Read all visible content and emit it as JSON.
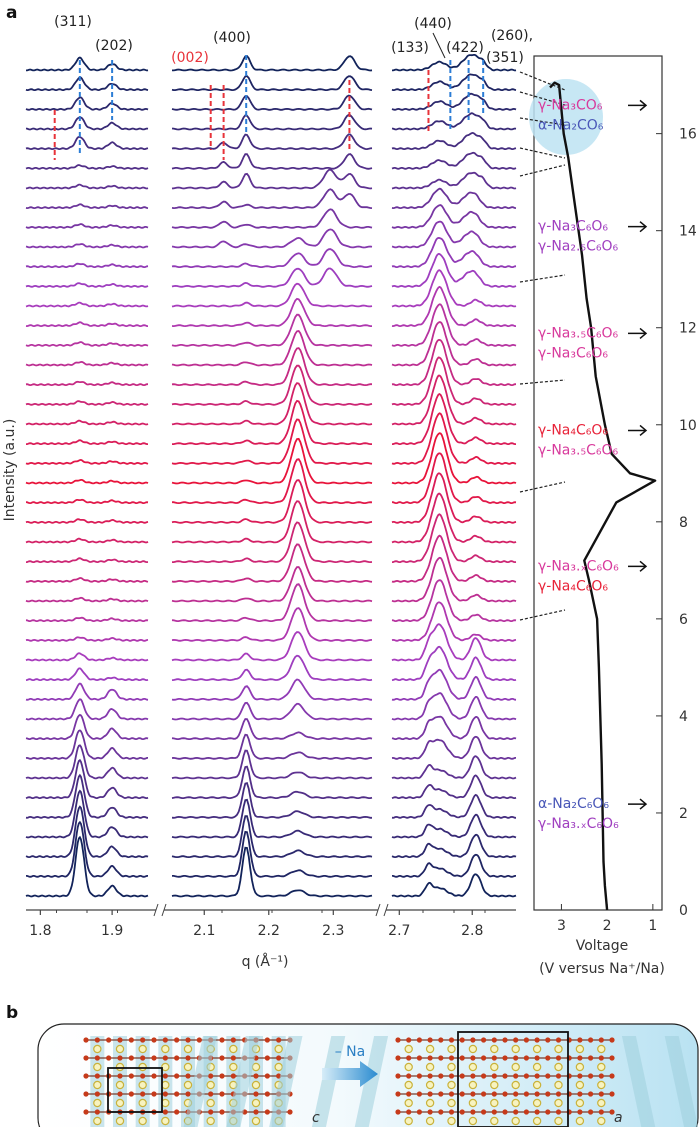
{
  "panel_a_label": "a",
  "panel_b_label": "b",
  "colors": {
    "start": "#12235a",
    "mid": "#a53fc4",
    "hot": "#e8133a",
    "phase_blue": "#4a58b8",
    "phase_purple": "#a040c0",
    "phase_pink": "#d83a9c",
    "phase_red": "#e8233a",
    "dash_blue": "#2c7dd6",
    "dash_red": "#e8333a",
    "ellipse": "#bde3f2"
  },
  "chart_data": [
    {
      "type": "line",
      "subtype": "stacked-offset-diffraction",
      "ylabel": "Intensity (a.u.)",
      "xlabel": "q (Å⁻¹)",
      "n_patterns": 43,
      "windows": [
        {
          "xlim": [
            1.78,
            1.95
          ],
          "ticks": [
            {
              "v": 1.8,
              "label": "1.8"
            },
            {
              "v": 1.9,
              "label": "1.9"
            }
          ],
          "peaks": [
            {
              "q": 1.855,
              "label": "(311)"
            },
            {
              "q": 1.9,
              "label": "(202)"
            },
            {
              "q": 1.82,
              "label": ""
            }
          ]
        },
        {
          "xlim": [
            2.05,
            2.36
          ],
          "ticks": [
            {
              "v": 2.1,
              "label": "2.1"
            },
            {
              "v": 2.2,
              "label": "2.2"
            },
            {
              "v": 2.3,
              "label": "2.3"
            }
          ],
          "peaks": [
            {
              "q": 2.165,
              "label": "(400)"
            },
            {
              "q": 2.245,
              "label": ""
            },
            {
              "q": 2.3,
              "label": ""
            },
            {
              "q": 2.13,
              "label": "(002)"
            },
            {
              "q": 2.325,
              "label": ""
            }
          ]
        },
        {
          "xlim": [
            2.69,
            2.86
          ],
          "ticks": [
            {
              "v": 2.7,
              "label": "2.7"
            },
            {
              "v": 2.8,
              "label": "2.8"
            }
          ],
          "peaks": [
            {
              "q": 2.74,
              "label": "(133)"
            },
            {
              "q": 2.77,
              "label": "(440)"
            },
            {
              "q": 2.795,
              "label": "(422)"
            },
            {
              "q": 2.815,
              "label": "(260),"
            },
            {
              "q": 2.815,
              "label": "(351)"
            }
          ]
        }
      ]
    },
    {
      "type": "line",
      "xlabel": "Voltage",
      "xlabel2": "(V versus Na⁺/Na)",
      "xlim": [
        3.6,
        0.8
      ],
      "ylim": [
        0,
        17.6
      ],
      "xticks": [
        {
          "v": 3,
          "label": "3"
        },
        {
          "v": 2,
          "label": "2"
        },
        {
          "v": 1,
          "label": "1"
        }
      ],
      "yticks": [
        {
          "v": 0,
          "label": "0"
        },
        {
          "v": 2,
          "label": "2"
        },
        {
          "v": 4,
          "label": "4"
        },
        {
          "v": 6,
          "label": "6"
        },
        {
          "v": 8,
          "label": "8"
        },
        {
          "v": 10,
          "label": "10"
        },
        {
          "v": 12,
          "label": "12"
        },
        {
          "v": 14,
          "label": "14"
        },
        {
          "v": 16,
          "label": "16"
        }
      ],
      "curve": [
        [
          2.0,
          0.0
        ],
        [
          2.05,
          0.5
        ],
        [
          2.08,
          1.0
        ],
        [
          2.1,
          2.0
        ],
        [
          2.12,
          3.0
        ],
        [
          2.15,
          4.0
        ],
        [
          2.18,
          5.0
        ],
        [
          2.22,
          6.0
        ],
        [
          2.4,
          6.8
        ],
        [
          2.5,
          7.2
        ],
        [
          1.8,
          8.4
        ],
        [
          0.95,
          8.85
        ],
        [
          1.5,
          9.0
        ],
        [
          1.9,
          9.4
        ],
        [
          2.05,
          10.0
        ],
        [
          2.25,
          11.0
        ],
        [
          2.35,
          12.0
        ],
        [
          2.45,
          12.6
        ],
        [
          2.55,
          13.5
        ],
        [
          2.7,
          14.5
        ],
        [
          2.85,
          15.5
        ],
        [
          2.95,
          16.0
        ],
        [
          3.0,
          16.5
        ],
        [
          3.05,
          17.0
        ],
        [
          3.15,
          17.05
        ],
        [
          3.25,
          16.95
        ]
      ],
      "phase_labels": [
        {
          "lines": [
            {
              "text": "γ-Na₃CO₆",
              "color": "phase_pink"
            },
            {
              "text": "α-Na₂CO₆",
              "color": "phase_blue"
            }
          ],
          "y": 16.5
        },
        {
          "lines": [
            {
              "text": "γ-Na₃C₆O₆",
              "color": "phase_purple"
            },
            {
              "text": "γ-Na₂.₅C₆O₆",
              "color": "phase_purple"
            }
          ],
          "y": 14.0
        },
        {
          "lines": [
            {
              "text": "γ-Na₃.₅C₆O₆",
              "color": "phase_pink"
            },
            {
              "text": "γ-Na₃C₆O₆",
              "color": "phase_pink"
            }
          ],
          "y": 11.8
        },
        {
          "lines": [
            {
              "text": "γ-Na₄C₆O₆",
              "color": "phase_red"
            },
            {
              "text": "γ-Na₃.₅C₆O₆",
              "color": "phase_pink"
            }
          ],
          "y": 9.8
        },
        {
          "lines": [
            {
              "text": "γ-Na₃.ₓC₆O₆",
              "color": "phase_pink"
            },
            {
              "text": "γ-Na₄C₆O₆",
              "color": "phase_red"
            }
          ],
          "y": 7.0
        },
        {
          "lines": [
            {
              "text": "α-Na₂C₆O₆",
              "color": "phase_blue"
            },
            {
              "text": "γ-Na₃.ₓC₆O₆",
              "color": "phase_purple"
            }
          ],
          "y": 2.1
        }
      ]
    }
  ],
  "panel_b": {
    "arrow_label": "– Na",
    "axis_c": "c",
    "axis_a": "a"
  }
}
